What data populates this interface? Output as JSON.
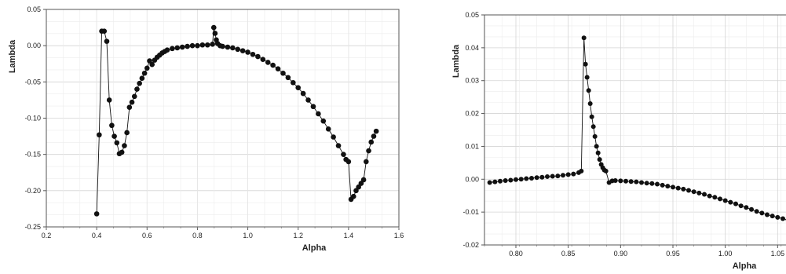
{
  "chart_data": [
    {
      "type": "scatter",
      "xlabel": "Alpha",
      "ylabel": "Lambda",
      "xlim": [
        0.2,
        1.6
      ],
      "ylim": [
        -0.25,
        0.05
      ],
      "xticks": [
        "0.2",
        "0.4",
        "0.6",
        "0.8",
        "1.0",
        "1.2",
        "1.4",
        "1.6"
      ],
      "yticks": [
        "0.05",
        "0.00",
        "-0.05",
        "-0.10",
        "-0.15",
        "-0.20",
        "-0.25"
      ],
      "grid": true,
      "series": [
        {
          "points": [
            [
              0.4,
              -0.232
            ],
            [
              0.41,
              -0.123
            ],
            [
              0.42,
              0.02
            ],
            [
              0.43,
              0.02
            ],
            [
              0.44,
              0.006
            ],
            [
              0.45,
              -0.075
            ],
            [
              0.46,
              -0.11
            ],
            [
              0.47,
              -0.125
            ],
            [
              0.48,
              -0.134
            ],
            [
              0.49,
              -0.149
            ],
            [
              0.5,
              -0.147
            ],
            [
              0.51,
              -0.138
            ],
            [
              0.52,
              -0.12
            ],
            [
              0.53,
              -0.085
            ],
            [
              0.54,
              -0.078
            ],
            [
              0.55,
              -0.07
            ],
            [
              0.56,
              -0.06
            ],
            [
              0.57,
              -0.052
            ],
            [
              0.58,
              -0.045
            ],
            [
              0.59,
              -0.038
            ],
            [
              0.6,
              -0.031
            ],
            [
              0.61,
              -0.021
            ],
            [
              0.62,
              -0.026
            ],
            [
              0.63,
              -0.02
            ],
            [
              0.64,
              -0.016
            ],
            [
              0.65,
              -0.013
            ],
            [
              0.66,
              -0.01
            ],
            [
              0.67,
              -0.008
            ],
            [
              0.68,
              -0.006
            ],
            [
              0.7,
              -0.004
            ],
            [
              0.72,
              -0.003
            ],
            [
              0.74,
              -0.002
            ],
            [
              0.76,
              -0.001
            ],
            [
              0.78,
              0.0
            ],
            [
              0.8,
              0.0
            ],
            [
              0.82,
              0.001
            ],
            [
              0.84,
              0.001
            ],
            [
              0.86,
              0.002
            ],
            [
              0.865,
              0.025
            ],
            [
              0.87,
              0.017
            ],
            [
              0.875,
              0.008
            ],
            [
              0.88,
              0.003
            ],
            [
              0.89,
              0.0
            ],
            [
              0.9,
              -0.001
            ],
            [
              0.92,
              -0.002
            ],
            [
              0.94,
              -0.003
            ],
            [
              0.96,
              -0.005
            ],
            [
              0.98,
              -0.007
            ],
            [
              1.0,
              -0.009
            ],
            [
              1.02,
              -0.012
            ],
            [
              1.04,
              -0.015
            ],
            [
              1.06,
              -0.019
            ],
            [
              1.08,
              -0.023
            ],
            [
              1.1,
              -0.027
            ],
            [
              1.12,
              -0.032
            ],
            [
              1.14,
              -0.038
            ],
            [
              1.16,
              -0.044
            ],
            [
              1.18,
              -0.051
            ],
            [
              1.2,
              -0.058
            ],
            [
              1.22,
              -0.066
            ],
            [
              1.24,
              -0.075
            ],
            [
              1.26,
              -0.084
            ],
            [
              1.28,
              -0.094
            ],
            [
              1.3,
              -0.104
            ],
            [
              1.32,
              -0.115
            ],
            [
              1.34,
              -0.126
            ],
            [
              1.36,
              -0.138
            ],
            [
              1.38,
              -0.15
            ],
            [
              1.39,
              -0.157
            ],
            [
              1.4,
              -0.16
            ],
            [
              1.41,
              -0.212
            ],
            [
              1.42,
              -0.208
            ],
            [
              1.43,
              -0.2
            ],
            [
              1.44,
              -0.195
            ],
            [
              1.45,
              -0.19
            ],
            [
              1.46,
              -0.185
            ],
            [
              1.47,
              -0.16
            ],
            [
              1.48,
              -0.145
            ],
            [
              1.49,
              -0.133
            ],
            [
              1.5,
              -0.125
            ],
            [
              1.51,
              -0.118
            ]
          ]
        }
      ]
    },
    {
      "type": "scatter",
      "xlabel": "Alpha",
      "ylabel": "Lambda",
      "xlim": [
        0.77,
        1.07
      ],
      "ylim": [
        -0.02,
        0.05
      ],
      "xticks": [
        "0.80",
        "0.85",
        "0.90",
        "0.95",
        "1.00",
        "1.05"
      ],
      "yticks": [
        "0.05",
        "0.04",
        "0.03",
        "0.02",
        "0.01",
        "0.00",
        "-0.01",
        "-0.02"
      ],
      "grid": true,
      "series": [
        {
          "points": [
            [
              0.775,
              -0.001
            ],
            [
              0.78,
              -0.0008
            ],
            [
              0.785,
              -0.0006
            ],
            [
              0.79,
              -0.0004
            ],
            [
              0.795,
              -0.0003
            ],
            [
              0.8,
              -0.0001
            ],
            [
              0.805,
              0.0
            ],
            [
              0.81,
              0.0002
            ],
            [
              0.815,
              0.0003
            ],
            [
              0.82,
              0.0005
            ],
            [
              0.825,
              0.0006
            ],
            [
              0.83,
              0.0008
            ],
            [
              0.835,
              0.0009
            ],
            [
              0.84,
              0.001
            ],
            [
              0.845,
              0.0012
            ],
            [
              0.85,
              0.0014
            ],
            [
              0.855,
              0.0016
            ],
            [
              0.86,
              0.002
            ],
            [
              0.8625,
              0.0025
            ],
            [
              0.865,
              0.043
            ],
            [
              0.8665,
              0.035
            ],
            [
              0.868,
              0.031
            ],
            [
              0.8695,
              0.027
            ],
            [
              0.871,
              0.023
            ],
            [
              0.8725,
              0.019
            ],
            [
              0.874,
              0.016
            ],
            [
              0.8755,
              0.013
            ],
            [
              0.877,
              0.01
            ],
            [
              0.8785,
              0.008
            ],
            [
              0.88,
              0.006
            ],
            [
              0.8815,
              0.0045
            ],
            [
              0.883,
              0.0035
            ],
            [
              0.8845,
              0.0028
            ],
            [
              0.886,
              0.0025
            ],
            [
              0.889,
              -0.001
            ],
            [
              0.892,
              -0.0005
            ],
            [
              0.895,
              -0.0004
            ],
            [
              0.9,
              -0.0005
            ],
            [
              0.905,
              -0.0006
            ],
            [
              0.91,
              -0.0007
            ],
            [
              0.915,
              -0.0008
            ],
            [
              0.92,
              -0.001
            ],
            [
              0.925,
              -0.0012
            ],
            [
              0.93,
              -0.0013
            ],
            [
              0.935,
              -0.0015
            ],
            [
              0.94,
              -0.0018
            ],
            [
              0.945,
              -0.0021
            ],
            [
              0.95,
              -0.0024
            ],
            [
              0.955,
              -0.0027
            ],
            [
              0.96,
              -0.003
            ],
            [
              0.965,
              -0.0034
            ],
            [
              0.97,
              -0.0038
            ],
            [
              0.975,
              -0.0042
            ],
            [
              0.98,
              -0.0046
            ],
            [
              0.985,
              -0.0051
            ],
            [
              0.99,
              -0.0055
            ],
            [
              0.995,
              -0.006
            ],
            [
              1.0,
              -0.0065
            ],
            [
              1.005,
              -0.007
            ],
            [
              1.01,
              -0.0075
            ],
            [
              1.015,
              -0.0081
            ],
            [
              1.02,
              -0.0086
            ],
            [
              1.025,
              -0.0092
            ],
            [
              1.03,
              -0.0098
            ],
            [
              1.035,
              -0.0103
            ],
            [
              1.04,
              -0.0108
            ],
            [
              1.045,
              -0.0112
            ],
            [
              1.05,
              -0.0116
            ],
            [
              1.055,
              -0.012
            ],
            [
              1.06,
              -0.0124
            ],
            [
              1.065,
              -0.0128
            ]
          ]
        }
      ]
    }
  ]
}
